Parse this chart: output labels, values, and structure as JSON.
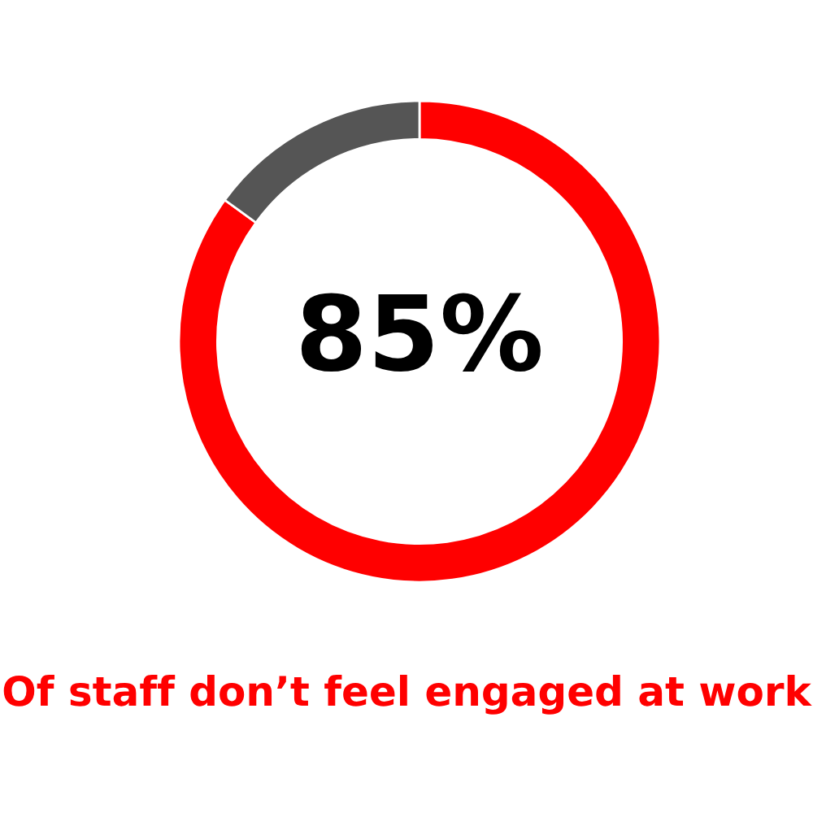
{
  "chart_data": {
    "type": "donut",
    "categories": [
      null,
      null
    ],
    "values": [
      85,
      15
    ],
    "colors": [
      "#ff0000",
      "#555555"
    ],
    "value_labels": [
      "85%",
      null
    ],
    "annotations": [
      "Of staff don’t feel engaged at work"
    ]
  }
}
